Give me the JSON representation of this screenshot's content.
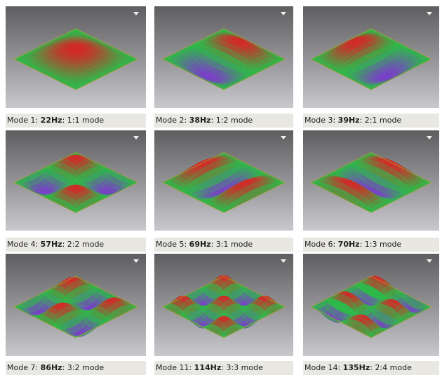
{
  "modes": [
    {
      "prefix": "Mode 1: ",
      "freq": "22Hz",
      "suffix": ": 1:1 mode",
      "m": 1,
      "n": 1
    },
    {
      "prefix": "Mode 2: ",
      "freq": "38Hz",
      "suffix": ": 1:2 mode",
      "m": 1,
      "n": 2
    },
    {
      "prefix": "Mode 3: ",
      "freq": "39Hz",
      "suffix": ": 2:1 mode",
      "m": 2,
      "n": 1
    },
    {
      "prefix": "Mode 4: ",
      "freq": "57Hz",
      "suffix": ": 2:2 mode",
      "m": 2,
      "n": 2
    },
    {
      "prefix": "Mode 5: ",
      "freq": "69Hz",
      "suffix": ": 3:1 mode",
      "m": 3,
      "n": 1
    },
    {
      "prefix": "Mode 6: ",
      "freq": "70Hz",
      "suffix": ": 1:3 mode",
      "m": 1,
      "n": 3
    },
    {
      "prefix": "Mode 7: ",
      "freq": "86Hz",
      "suffix": ": 3:2 mode",
      "m": 3,
      "n": 2
    },
    {
      "prefix": "Mode 11: ",
      "freq": "114Hz",
      "suffix": ": 3:3 mode",
      "m": 3,
      "n": 3
    },
    {
      "prefix": "Mode 14: ",
      "freq": "135Hz",
      "suffix": ": 2:4 mode",
      "m": 2,
      "n": 4
    }
  ],
  "palette": {
    "high": "#d42828",
    "mid": "#2fb84a",
    "low": "#7a3fc8",
    "edge": "#b8a030"
  },
  "icons": {
    "panel_menu": "dropdown-arrow-icon"
  }
}
